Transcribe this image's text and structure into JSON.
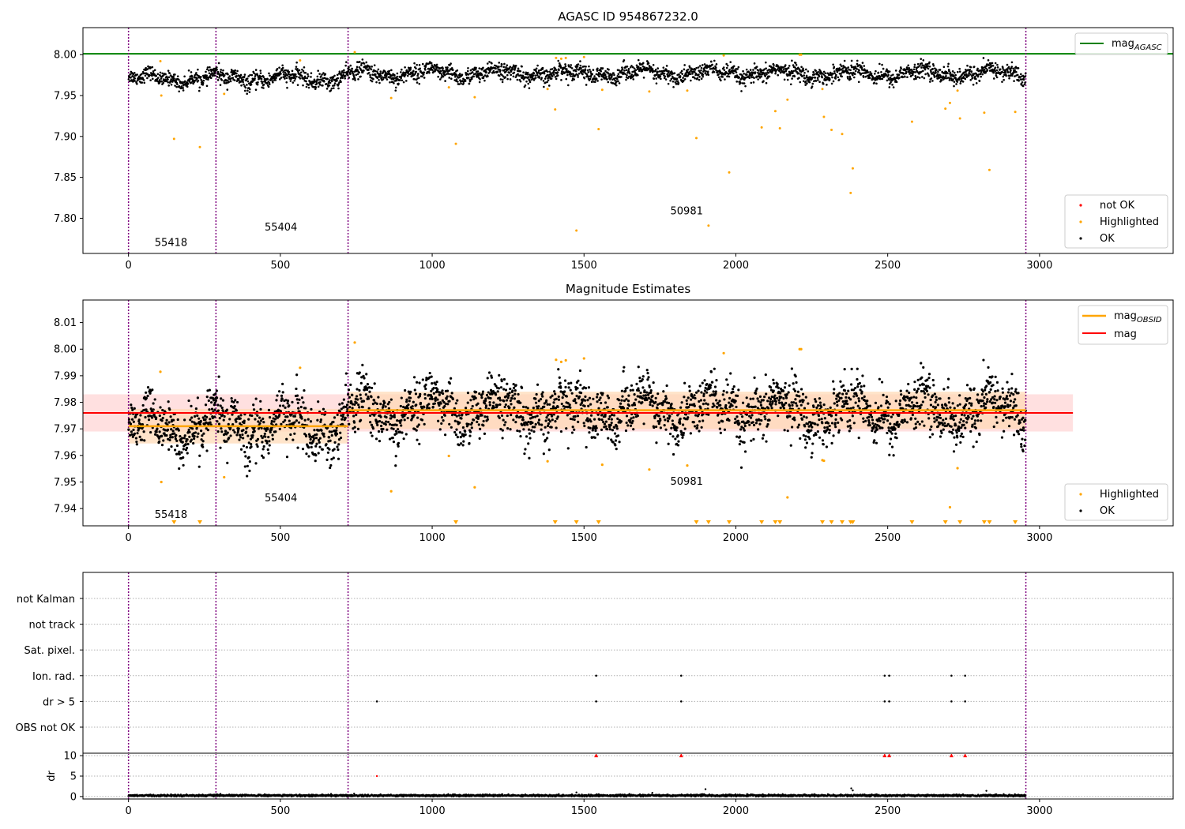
{
  "colors": {
    "ok": "#000000",
    "highlighted": "#ffa500",
    "not_ok": "#ff0000",
    "mag_agasc_line": "#008000",
    "mag_line": "#ff0000",
    "mag_band": "#ffcccc",
    "mag_obsid_line": "#ffa500",
    "mag_obsid_band": "#ffd9b3",
    "obs_boundary": "#800080",
    "flag_grid": "#b0b0b0"
  },
  "chart_data": [
    {
      "type": "scatter",
      "title": "AGASC ID 954867232.0",
      "xlim": [
        -150,
        3440
      ],
      "ylim": [
        7.757,
        8.033
      ],
      "x_ticks": [
        0,
        500,
        1000,
        1500,
        2000,
        2500,
        3000
      ],
      "x_tick_labels": [
        "0",
        "500",
        "1000",
        "1500",
        "2000",
        "2500",
        "3000"
      ],
      "y_ticks": [
        7.8,
        7.85,
        7.9,
        7.95,
        8.0
      ],
      "y_tick_labels": [
        "7.80",
        "7.85",
        "7.90",
        "7.95",
        "8.00"
      ],
      "obs_boundaries": [
        0,
        288,
        723,
        2955
      ],
      "obs_labels": [
        {
          "text": "55418",
          "x": 140,
          "y": 7.766
        },
        {
          "text": "55404",
          "x": 502,
          "y": 7.785
        },
        {
          "text": "50981",
          "x": 1838,
          "y": 7.805
        }
      ],
      "mag_agasc": 8.001,
      "legend_lines": [
        {
          "label": "mag",
          "subscript": "AGASC"
        }
      ],
      "legend_points": [
        "not OK",
        "Highlighted",
        "OK"
      ],
      "legend_positions": [
        "top-right",
        "bottom-right"
      ],
      "ok_series": {
        "name": "OK",
        "obs_segments": [
          {
            "start": 0,
            "end": 288,
            "mean": 7.971,
            "std": 0.0055
          },
          {
            "start": 288,
            "end": 723,
            "mean": 7.971,
            "std": 0.0065
          },
          {
            "start": 723,
            "end": 2955,
            "mean": 7.977,
            "std": 0.0065
          }
        ],
        "samples_per_unit": 1.0
      },
      "highlighted_points": [
        [
          105,
          7.992
        ],
        [
          108,
          7.95
        ],
        [
          150,
          7.897
        ],
        [
          235,
          7.887
        ],
        [
          315,
          7.952
        ],
        [
          565,
          7.993
        ],
        [
          745,
          8.003
        ],
        [
          865,
          7.947
        ],
        [
          1055,
          7.96
        ],
        [
          1078,
          7.891
        ],
        [
          1140,
          7.948
        ],
        [
          1380,
          7.958
        ],
        [
          1405,
          7.933
        ],
        [
          1408,
          7.996
        ],
        [
          1425,
          7.995
        ],
        [
          1440,
          7.996
        ],
        [
          1475,
          7.785
        ],
        [
          1500,
          7.997
        ],
        [
          1548,
          7.909
        ],
        [
          1560,
          7.957
        ],
        [
          1715,
          7.955
        ],
        [
          1840,
          7.956
        ],
        [
          1870,
          7.898
        ],
        [
          1910,
          7.791
        ],
        [
          1960,
          7.999
        ],
        [
          1978,
          7.856
        ],
        [
          2085,
          7.911
        ],
        [
          2130,
          7.931
        ],
        [
          2145,
          7.91
        ],
        [
          2170,
          7.945
        ],
        [
          2210,
          8.0
        ],
        [
          2215,
          8.0
        ],
        [
          2285,
          7.958
        ],
        [
          2290,
          7.924
        ],
        [
          2315,
          7.908
        ],
        [
          2350,
          7.903
        ],
        [
          2378,
          7.831
        ],
        [
          2385,
          7.861
        ],
        [
          2580,
          7.918
        ],
        [
          2690,
          7.934
        ],
        [
          2705,
          7.941
        ],
        [
          2730,
          7.956
        ],
        [
          2738,
          7.922
        ],
        [
          2818,
          7.929
        ],
        [
          2835,
          7.859
        ],
        [
          2920,
          7.93
        ]
      ]
    },
    {
      "type": "scatter",
      "title": "Magnitude Estimates",
      "xlim": [
        -150,
        3440
      ],
      "ylim": [
        7.9335,
        8.0185
      ],
      "x_ticks": [
        0,
        500,
        1000,
        1500,
        2000,
        2500,
        3000
      ],
      "x_tick_labels": [
        "0",
        "500",
        "1000",
        "1500",
        "2000",
        "2500",
        "3000"
      ],
      "y_ticks": [
        7.94,
        7.95,
        7.96,
        7.97,
        7.98,
        7.99,
        8.0,
        8.01
      ],
      "y_tick_labels": [
        "7.94",
        "7.95",
        "7.96",
        "7.97",
        "7.98",
        "7.99",
        "8.00",
        "8.01"
      ],
      "obs_boundaries": [
        0,
        288,
        723,
        2955
      ],
      "obs_labels": [
        {
          "text": "55418",
          "x": 140,
          "y": 7.9365
        },
        {
          "text": "55404",
          "x": 502,
          "y": 7.9427
        },
        {
          "text": "50981",
          "x": 1838,
          "y": 7.9489
        }
      ],
      "mag": 7.976,
      "mag_band": [
        7.969,
        7.983
      ],
      "mag_band_x": [
        -150,
        3110
      ],
      "mag_obsid": [
        {
          "start": 0,
          "end": 723,
          "value": 7.971,
          "band": [
            7.9645,
            7.9775
          ]
        },
        {
          "start": 723,
          "end": 2955,
          "value": 7.977,
          "band": [
            7.97,
            7.984
          ]
        }
      ],
      "legend_lines": [
        {
          "label": "mag",
          "subscript": "OBSID"
        },
        {
          "label": "mag",
          "subscript": ""
        }
      ],
      "legend_points": [
        "Highlighted",
        "OK"
      ],
      "legend_positions": [
        "top-right",
        "bottom-right"
      ],
      "ok_series": {
        "name": "OK",
        "obs_segments": [
          {
            "start": 0,
            "end": 288,
            "mean": 7.971,
            "std": 0.0055
          },
          {
            "start": 288,
            "end": 723,
            "mean": 7.971,
            "std": 0.0065
          },
          {
            "start": 723,
            "end": 2955,
            "mean": 7.977,
            "std": 0.0065
          }
        ],
        "samples_per_unit": 1.0
      },
      "highlighted_points": [
        [
          105,
          7.9915
        ],
        [
          108,
          7.95
        ],
        [
          315,
          7.9518
        ],
        [
          565,
          7.993
        ],
        [
          745,
          8.0025
        ],
        [
          865,
          7.9465
        ],
        [
          1055,
          7.9598
        ],
        [
          1140,
          7.948
        ],
        [
          1380,
          7.9578
        ],
        [
          1408,
          7.996
        ],
        [
          1425,
          7.9952
        ],
        [
          1440,
          7.9958
        ],
        [
          1500,
          7.9965
        ],
        [
          1560,
          7.9565
        ],
        [
          1715,
          7.9547
        ],
        [
          1840,
          7.9562
        ],
        [
          1960,
          7.9985
        ],
        [
          2170,
          7.9442
        ],
        [
          2210,
          8.0
        ],
        [
          2215,
          8.0
        ],
        [
          2285,
          7.9582
        ],
        [
          2290,
          7.958
        ],
        [
          2705,
          7.9405
        ],
        [
          2730,
          7.9552
        ]
      ],
      "offscale_markers": [
        150,
        235,
        1078,
        1405,
        1475,
        1548,
        1870,
        1910,
        1978,
        2085,
        2130,
        2145,
        2285,
        2315,
        2350,
        2378,
        2385,
        2580,
        2690,
        2738,
        2818,
        2835,
        2920
      ]
    },
    {
      "type": "scatter",
      "title": "",
      "xlim": [
        -150,
        3440
      ],
      "x_ticks": [
        0,
        500,
        1000,
        1500,
        2000,
        2500,
        3000
      ],
      "x_tick_labels": [
        "0",
        "500",
        "1000",
        "1500",
        "2000",
        "2500",
        "3000"
      ],
      "obs_boundaries": [
        0,
        288,
        723,
        2955
      ],
      "flag_rows": [
        "not Kalman",
        "not track",
        "Sat. pixel.",
        "Ion. rad.",
        "dr > 5",
        "OBS not OK"
      ],
      "flag_points": {
        "Ion. rad.": [
          1540,
          1820,
          2490,
          2505,
          2710,
          2755
        ],
        "dr > 5": [
          818,
          1540,
          1820,
          2490,
          2505,
          2710,
          2755
        ]
      }
    },
    {
      "type": "scatter",
      "title": "",
      "ylabel": "dr",
      "xlim": [
        -150,
        3440
      ],
      "ylim": [
        -0.6,
        10.6
      ],
      "y_ticks": [
        0,
        5,
        10
      ],
      "y_tick_labels": [
        "0",
        "5",
        "10"
      ],
      "x_ticks": [
        0,
        500,
        1000,
        1500,
        2000,
        2500,
        3000
      ],
      "x_tick_labels": [
        "0",
        "500",
        "1000",
        "1500",
        "2000",
        "2500",
        "3000"
      ],
      "obs_boundaries": [
        0,
        288,
        723,
        2955
      ],
      "clip_value": 10,
      "baseline": {
        "mean": 0.25,
        "jitter": 0.2
      },
      "outliers": [
        [
          818,
          5.0
        ],
        [
          1900,
          1.8
        ],
        [
          2380,
          2.0
        ],
        [
          2385,
          1.5
        ],
        [
          2825,
          1.4
        ],
        [
          1725,
          0.9
        ],
        [
          1475,
          1.0
        ]
      ],
      "clipped_red": [
        1540,
        1820,
        2490,
        2505,
        2710,
        2755
      ]
    }
  ]
}
